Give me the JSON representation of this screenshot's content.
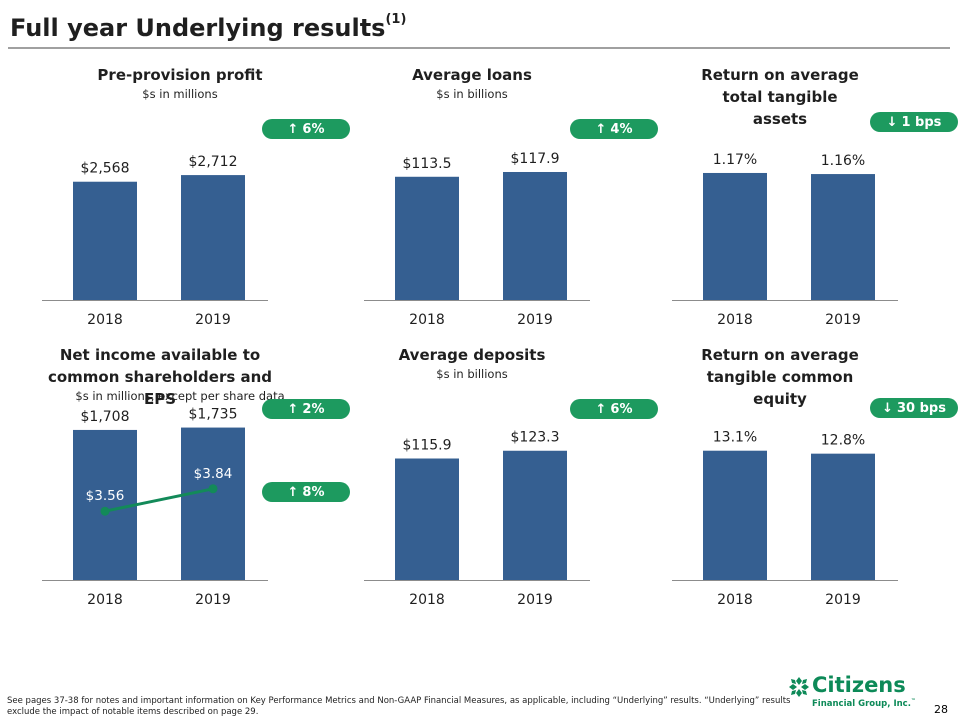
{
  "title": "Full year Underlying results",
  "title_superscript": "(1)",
  "colors": {
    "bar": "#355f91",
    "badge": "#1d9a5f",
    "eps_line": "#138a59",
    "axis": "#8c8c8c"
  },
  "chart_data": [
    {
      "type": "bar",
      "title": "Pre-provision profit",
      "subtitle": "$s in millions",
      "categories": [
        "2018",
        "2019"
      ],
      "values": [
        2568,
        2712
      ],
      "value_labels": [
        "$2,568",
        "$2,712"
      ],
      "ylim": [
        0,
        3300
      ],
      "badges": [
        {
          "arrow": "up",
          "text": "6%"
        }
      ]
    },
    {
      "type": "bar",
      "title": "Average loans",
      "subtitle": "$s in billions",
      "categories": [
        "2018",
        "2019"
      ],
      "values": [
        113.5,
        117.9
      ],
      "value_labels": [
        "$113.5",
        "$117.9"
      ],
      "ylim": [
        0,
        140
      ],
      "badges": [
        {
          "arrow": "up",
          "text": "4%"
        }
      ]
    },
    {
      "type": "bar",
      "title": "Return on average total tangible assets",
      "subtitle": "",
      "categories": [
        "2018",
        "2019"
      ],
      "values": [
        1.17,
        1.16
      ],
      "value_labels": [
        "1.17%",
        "1.16%"
      ],
      "ylim": [
        0,
        1.4
      ],
      "badges": [
        {
          "arrow": "down",
          "text": "1 bps"
        }
      ]
    },
    {
      "type": "bar",
      "title": "Net income available to common shareholders and EPS",
      "subtitle": "$s in millions, except per share data",
      "categories": [
        "2018",
        "2019"
      ],
      "values": [
        1708,
        1735
      ],
      "value_labels": [
        "$1,708",
        "$1,735"
      ],
      "ylim": [
        0,
        1730
      ],
      "line": {
        "values": [
          3.56,
          3.84
        ],
        "labels": [
          "$3.56",
          "$3.84"
        ],
        "ylim": [
          2.7,
          4.6
        ]
      },
      "badges": [
        {
          "arrow": "up",
          "text": "2%"
        },
        {
          "arrow": "up",
          "text": "8%"
        }
      ]
    },
    {
      "type": "bar",
      "title": "Average deposits",
      "subtitle": "$s in billions",
      "categories": [
        "2018",
        "2019"
      ],
      "values": [
        115.9,
        123.3
      ],
      "value_labels": [
        "$115.9",
        "$123.3"
      ],
      "ylim": [
        0,
        145
      ],
      "badges": [
        {
          "arrow": "up",
          "text": "6%"
        }
      ]
    },
    {
      "type": "bar",
      "title": "Return on average tangible common equity",
      "subtitle": "",
      "categories": [
        "2018",
        "2019"
      ],
      "values": [
        13.1,
        12.8
      ],
      "value_labels": [
        "13.1%",
        "12.8%"
      ],
      "ylim": [
        0,
        15.4
      ],
      "badges": [
        {
          "arrow": "down",
          "text": "30 bps"
        }
      ]
    }
  ],
  "footnote": "See pages 37-38 for notes and important information on Key Performance Metrics and Non-GAAP Financial Measures, as applicable, including “Underlying” results. “Underlying” results exclude the impact of notable items described on page 29.",
  "logo": {
    "name": "Citizens",
    "sub": "Financial Group, Inc.",
    "tm": "™"
  },
  "page_number": "28"
}
